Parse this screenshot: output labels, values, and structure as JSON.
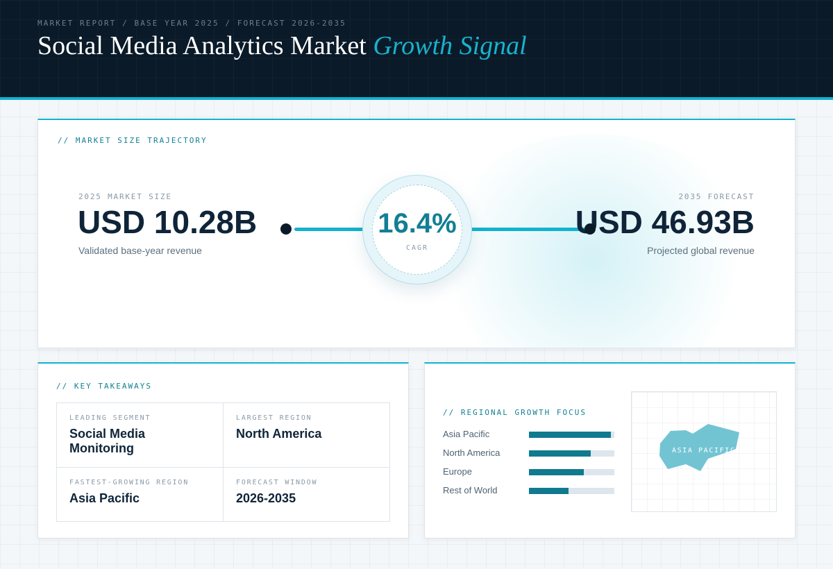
{
  "header": {
    "eyebrow": "MARKET REPORT / BASE YEAR 2025 / FORECAST 2026-2035",
    "title": "Social Media Analytics Market",
    "title_accent": "Growth Signal"
  },
  "trajectory": {
    "section_label": "// MARKET SIZE TRAJECTORY",
    "base": {
      "label": "2025 MARKET SIZE",
      "value": "USD 10.28B",
      "note": "Validated base-year revenue"
    },
    "cagr": {
      "value": "16.4%",
      "label": "CAGR"
    },
    "forecast": {
      "label": "2035 FORECAST",
      "value": "USD 46.93B",
      "note": "Projected global revenue"
    }
  },
  "takeaways": {
    "section_label": "// KEY TAKEAWAYS",
    "items": [
      {
        "label": "LEADING SEGMENT",
        "value": "Social Media Monitoring"
      },
      {
        "label": "LARGEST REGION",
        "value": "North America"
      },
      {
        "label": "FASTEST-GROWING REGION",
        "value": "Asia Pacific"
      },
      {
        "label": "FORECAST WINDOW",
        "value": "2026-2035"
      }
    ]
  },
  "regional": {
    "section_label": "// REGIONAL GROWTH FOCUS",
    "bars": [
      {
        "name": "Asia Pacific",
        "level": 0.96
      },
      {
        "name": "North America",
        "level": 0.72
      },
      {
        "name": "Europe",
        "level": 0.64
      },
      {
        "name": "Rest of World",
        "level": 0.46
      }
    ],
    "map_label": "ASIA PACIFIC"
  },
  "colors": {
    "accent": "#12b3cf",
    "bar_fill": "#107a8e",
    "header_bg": "#0a1a28",
    "map_fill": "#72c4d3"
  },
  "icons": [
    "asia-pacific-map-icon"
  ]
}
